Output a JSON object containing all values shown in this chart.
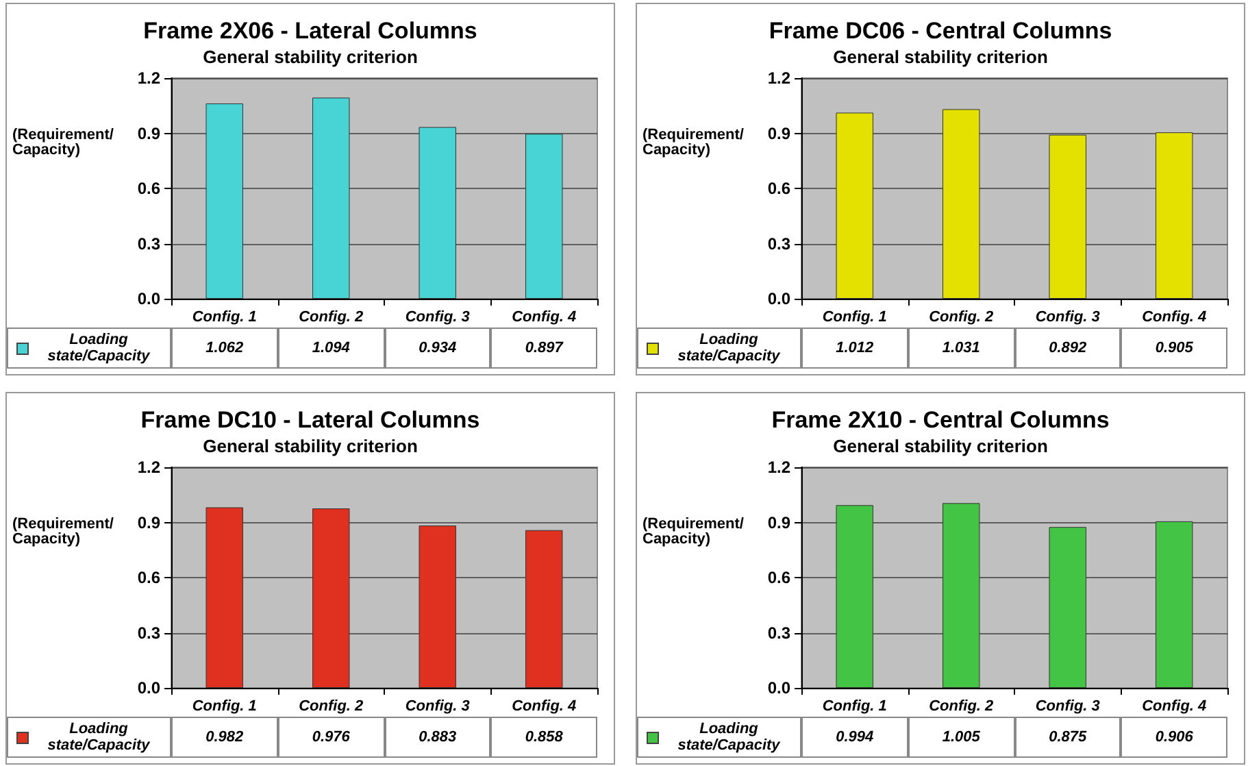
{
  "chart_data": [
    {
      "type": "bar",
      "title": "Frame 2X06 - Lateral Columns",
      "subtitle": "General stability criterion",
      "ylabel": "(Requirement/\nCapacity)",
      "categories": [
        "Config. 1",
        "Config. 2",
        "Config. 3",
        "Config. 4"
      ],
      "series": [
        {
          "name": "Loading state/Capacity",
          "color": "#48d4d4",
          "values": [
            1.062,
            1.094,
            0.934,
            0.897
          ]
        }
      ],
      "ylim": [
        0,
        1.2
      ],
      "yticks": [
        {
          "value": 0,
          "label": "0.0"
        },
        {
          "value": 0.3,
          "label": "0.3"
        },
        {
          "value": 0.6,
          "label": "0.6"
        },
        {
          "value": 0.9,
          "label": "0.9"
        },
        {
          "value": 1.2,
          "label": "1.2"
        }
      ],
      "grid": "y",
      "legend": "bottom left",
      "data_labels": true
    },
    {
      "type": "bar",
      "title": "Frame DC06 - Central Columns",
      "subtitle": "General stability criterion",
      "ylabel": "(Requirement/\nCapacity)",
      "categories": [
        "Config. 1",
        "Config. 2",
        "Config. 3",
        "Config. 4"
      ],
      "series": [
        {
          "name": "Loading state/Capacity",
          "color": "#e4e000",
          "values": [
            1.012,
            1.031,
            0.892,
            0.905
          ]
        }
      ],
      "ylim": [
        0,
        1.2
      ],
      "yticks": [
        {
          "value": 0,
          "label": "0.0"
        },
        {
          "value": 0.3,
          "label": "0.3"
        },
        {
          "value": 0.6,
          "label": "0.6"
        },
        {
          "value": 0.9,
          "label": "0.9"
        },
        {
          "value": 1.2,
          "label": "1.2"
        }
      ],
      "grid": "y",
      "legend": "bottom left",
      "data_labels": true
    },
    {
      "type": "bar",
      "title": "Frame DC10 - Lateral Columns",
      "subtitle": "General stability criterion",
      "ylabel": "(Requirement/\nCapacity)",
      "categories": [
        "Config. 1",
        "Config. 2",
        "Config. 3",
        "Config. 4"
      ],
      "series": [
        {
          "name": "Loading state/Capacity",
          "color": "#e03020",
          "values": [
            0.982,
            0.976,
            0.883,
            0.858
          ]
        }
      ],
      "ylim": [
        0,
        1.2
      ],
      "yticks": [
        {
          "value": 0,
          "label": "0.0"
        },
        {
          "value": 0.3,
          "label": "0.3"
        },
        {
          "value": 0.6,
          "label": "0.6"
        },
        {
          "value": 0.9,
          "label": "0.9"
        },
        {
          "value": 1.2,
          "label": "1.2"
        }
      ],
      "grid": "y",
      "legend": "bottom left",
      "data_labels": true
    },
    {
      "type": "bar",
      "title": "Frame 2X10 - Central Columns",
      "subtitle": "General stability criterion",
      "ylabel": "(Requirement/\nCapacity)",
      "categories": [
        "Config. 1",
        "Config. 2",
        "Config. 3",
        "Config. 4"
      ],
      "series": [
        {
          "name": "Loading state/Capacity",
          "color": "#44c444",
          "values": [
            0.994,
            1.005,
            0.875,
            0.906
          ]
        }
      ],
      "ylim": [
        0,
        1.2
      ],
      "yticks": [
        {
          "value": 0,
          "label": "0.0"
        },
        {
          "value": 0.3,
          "label": "0.3"
        },
        {
          "value": 0.6,
          "label": "0.6"
        },
        {
          "value": 0.9,
          "label": "0.9"
        },
        {
          "value": 1.2,
          "label": "1.2"
        }
      ],
      "grid": "y",
      "legend": "bottom left",
      "data_labels": true
    }
  ]
}
